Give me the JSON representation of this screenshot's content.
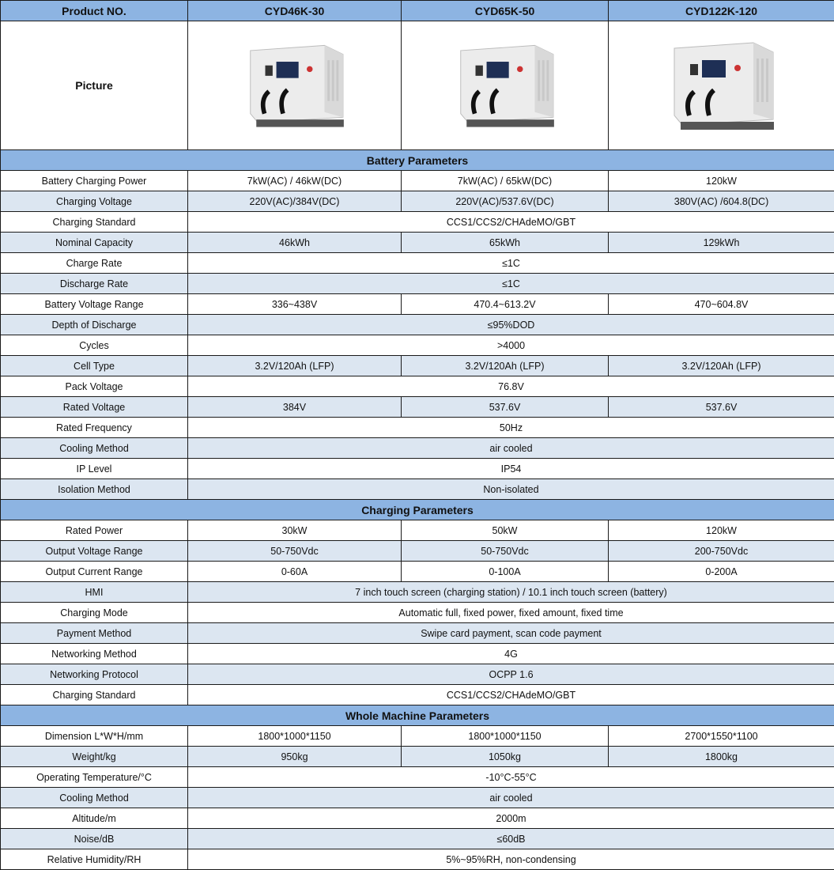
{
  "header": {
    "label": "Product NO.",
    "products": [
      "CYD46K-30",
      "CYD65K-50",
      "CYD122K-120"
    ]
  },
  "picture_label": "Picture",
  "product_images": [
    "charging-cabinet-icon",
    "charging-cabinet-icon",
    "charging-cabinet-icon"
  ],
  "colors": {
    "header": "#8db4e2",
    "alt_row": "#dce6f1"
  },
  "sections": [
    {
      "title": "Battery Parameters",
      "rows": [
        {
          "label": "Battery Charging Power",
          "values": [
            "7kW(AC) / 46kW(DC)",
            "7kW(AC) / 65kW(DC)",
            "120kW"
          ]
        },
        {
          "label": "Charging Voltage",
          "values": [
            "220V(AC)/384V(DC)",
            "220V(AC)/537.6V(DC)",
            "380V(AC) /604.8(DC)"
          ]
        },
        {
          "label": "Charging Standard",
          "values": [
            "CCS1/CCS2/CHAdeMO/GBT"
          ]
        },
        {
          "label": "Nominal Capacity",
          "values": [
            "46kWh",
            "65kWh",
            "129kWh"
          ]
        },
        {
          "label": "Charge Rate",
          "values": [
            "≤1C"
          ]
        },
        {
          "label": "Discharge Rate",
          "values": [
            "≤1C"
          ]
        },
        {
          "label": "Battery Voltage Range",
          "values": [
            "336~438V",
            "470.4~613.2V",
            "470~604.8V"
          ]
        },
        {
          "label": "Depth of Discharge",
          "values": [
            "≤95%DOD"
          ]
        },
        {
          "label": "Cycles",
          "values": [
            ">4000"
          ]
        },
        {
          "label": "Cell Type",
          "values": [
            "3.2V/120Ah (LFP)",
            "3.2V/120Ah (LFP)",
            "3.2V/120Ah (LFP)"
          ]
        },
        {
          "label": "Pack Voltage",
          "values": [
            "76.8V"
          ]
        },
        {
          "label": "Rated Voltage",
          "values": [
            "384V",
            "537.6V",
            "537.6V"
          ]
        },
        {
          "label": "Rated Frequency",
          "values": [
            "50Hz"
          ]
        },
        {
          "label": "Cooling Method",
          "values": [
            "air cooled"
          ]
        },
        {
          "label": "IP Level",
          "values": [
            "IP54"
          ]
        },
        {
          "label": "Isolation Method",
          "values": [
            "Non-isolated"
          ]
        }
      ]
    },
    {
      "title": "Charging Parameters",
      "rows": [
        {
          "label": "Rated Power",
          "values": [
            "30kW",
            "50kW",
            "120kW"
          ]
        },
        {
          "label": "Output Voltage Range",
          "values": [
            "50-750Vdc",
            "50-750Vdc",
            "200-750Vdc"
          ]
        },
        {
          "label": "Output Current Range",
          "values": [
            "0-60A",
            "0-100A",
            "0-200A"
          ]
        },
        {
          "label": "HMI",
          "values": [
            "7 inch touch screen (charging station) / 10.1 inch touch screen (battery)"
          ]
        },
        {
          "label": "Charging Mode",
          "values": [
            "Automatic full, fixed power, fixed amount, fixed time"
          ]
        },
        {
          "label": "Payment Method",
          "values": [
            "Swipe card payment, scan code payment"
          ]
        },
        {
          "label": "Networking Method",
          "values": [
            "4G"
          ]
        },
        {
          "label": "Networking Protocol",
          "values": [
            "OCPP 1.6"
          ]
        },
        {
          "label": "Charging Standard",
          "values": [
            "CCS1/CCS2/CHAdeMO/GBT"
          ]
        }
      ]
    },
    {
      "title": "Whole Machine Parameters",
      "rows": [
        {
          "label": "Dimension L*W*H/mm",
          "values": [
            "1800*1000*1150",
            "1800*1000*1150",
            "2700*1550*1100"
          ]
        },
        {
          "label": "Weight/kg",
          "values": [
            "950kg",
            "1050kg",
            "1800kg"
          ]
        },
        {
          "label": "Operating Temperature/°C",
          "values": [
            "-10°C-55°C"
          ]
        },
        {
          "label": "Cooling Method",
          "values": [
            "air cooled"
          ]
        },
        {
          "label": "Altitude/m",
          "values": [
            "2000m"
          ]
        },
        {
          "label": "Noise/dB",
          "values": [
            "≤60dB"
          ]
        },
        {
          "label": "Relative Humidity/RH",
          "values": [
            "5%~95%RH, non-condensing"
          ]
        }
      ]
    }
  ]
}
